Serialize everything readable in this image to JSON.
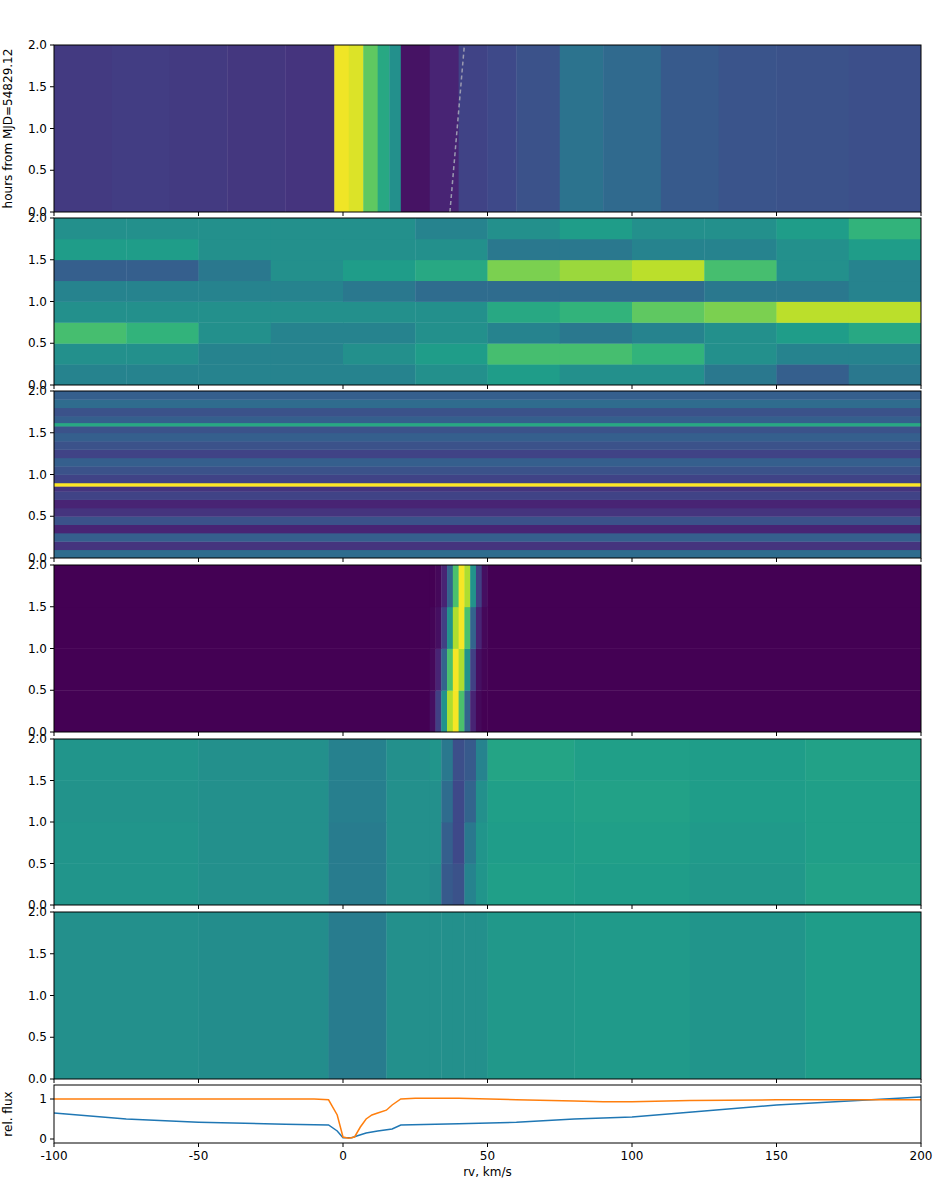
{
  "chart_data": [
    {
      "type": "heatmap",
      "ylabel": "hours from MJD=54829.12",
      "xlim": [
        -100,
        200
      ],
      "xticks": [
        -100,
        -50,
        0,
        50,
        100,
        150,
        200
      ],
      "ylim": [
        0,
        2
      ],
      "yticks": [
        {
          "value": 0,
          "label": "0.0"
        },
        {
          "value": 0.5,
          "label": "0.5"
        },
        {
          "value": 1,
          "label": "1.0"
        },
        {
          "value": 1.5,
          "label": "1.5"
        },
        {
          "value": 2,
          "label": "2.0"
        }
      ],
      "tick_labels": "y",
      "zlim": [
        0,
        1
      ],
      "x": [
        -100,
        -80,
        -60,
        -40,
        -20,
        -3,
        2,
        7,
        12,
        16,
        20,
        30,
        40,
        50,
        60,
        75,
        90,
        110,
        130,
        150,
        175,
        200
      ],
      "y": [
        0,
        2
      ],
      "z": [
        [
          0.17,
          0.18,
          0.17,
          0.16,
          0.15,
          0.98,
          0.95,
          0.75,
          0.6,
          0.5,
          0.05,
          0.1,
          0.2,
          0.22,
          0.25,
          0.38,
          0.34,
          0.28,
          0.26,
          0.25,
          0.24
        ]
      ],
      "lines": [
        {
          "x": [
            37,
            42
          ],
          "y": [
            0,
            2
          ],
          "line_style": "dashed",
          "color": "#9a9ab0"
        }
      ]
    },
    {
      "type": "heatmap",
      "xlim": [
        -100,
        200
      ],
      "xticks": [
        -100,
        -50,
        0,
        50,
        100,
        150,
        200
      ],
      "ylim": [
        0,
        2
      ],
      "yticks": [
        {
          "value": 0,
          "label": "0.0"
        },
        {
          "value": 0.5,
          "label": "0.5"
        },
        {
          "value": 1,
          "label": "1.0"
        },
        {
          "value": 1.5,
          "label": "1.5"
        },
        {
          "value": 2,
          "label": "2.0"
        }
      ],
      "tick_labels": "y",
      "zlim": [
        0,
        1
      ],
      "x": [
        -100,
        -75,
        -50,
        -25,
        0,
        25,
        50,
        75,
        100,
        125,
        150,
        175,
        200
      ],
      "y": [
        0,
        0.25,
        0.5,
        0.75,
        1,
        1.25,
        1.5,
        1.75,
        2
      ],
      "z": [
        [
          0.45,
          0.45,
          0.45,
          0.45,
          0.45,
          0.5,
          0.55,
          0.5,
          0.5,
          0.4,
          0.3,
          0.4
        ],
        [
          0.5,
          0.5,
          0.45,
          0.45,
          0.5,
          0.55,
          0.7,
          0.7,
          0.65,
          0.5,
          0.45,
          0.45
        ],
        [
          0.7,
          0.65,
          0.5,
          0.45,
          0.45,
          0.5,
          0.45,
          0.4,
          0.45,
          0.5,
          0.55,
          0.6
        ],
        [
          0.5,
          0.5,
          0.5,
          0.5,
          0.5,
          0.5,
          0.6,
          0.65,
          0.75,
          0.8,
          0.9,
          0.9
        ],
        [
          0.45,
          0.45,
          0.45,
          0.45,
          0.4,
          0.35,
          0.35,
          0.35,
          0.35,
          0.4,
          0.4,
          0.45
        ],
        [
          0.3,
          0.3,
          0.4,
          0.5,
          0.55,
          0.6,
          0.8,
          0.85,
          0.9,
          0.7,
          0.5,
          0.45
        ],
        [
          0.55,
          0.55,
          0.5,
          0.5,
          0.5,
          0.5,
          0.4,
          0.4,
          0.45,
          0.45,
          0.5,
          0.55
        ],
        [
          0.5,
          0.5,
          0.5,
          0.5,
          0.5,
          0.45,
          0.5,
          0.55,
          0.5,
          0.5,
          0.55,
          0.65
        ]
      ]
    },
    {
      "type": "heatmap",
      "xlim": [
        -100,
        200
      ],
      "xticks": [
        -100,
        -50,
        0,
        50,
        100,
        150,
        200
      ],
      "ylim": [
        0,
        2
      ],
      "yticks": [
        {
          "value": 0,
          "label": "0.0"
        },
        {
          "value": 0.5,
          "label": "0.5"
        },
        {
          "value": 1,
          "label": "1.0"
        },
        {
          "value": 1.5,
          "label": "1.5"
        },
        {
          "value": 2,
          "label": "2.0"
        }
      ],
      "tick_labels": "y",
      "zlim": [
        0,
        1
      ],
      "x": [
        -100,
        200
      ],
      "y": [
        0,
        0.1,
        0.2,
        0.3,
        0.4,
        0.5,
        0.6,
        0.7,
        0.8,
        0.86,
        0.9,
        1,
        1.1,
        1.2,
        1.3,
        1.4,
        1.5,
        1.58,
        1.62,
        1.7,
        1.8,
        1.9,
        2
      ],
      "z": [
        [
          0.35
        ],
        [
          0.15
        ],
        [
          0.3
        ],
        [
          0.1
        ],
        [
          0.25
        ],
        [
          0.15
        ],
        [
          0.1
        ],
        [
          0.2
        ],
        [
          0.15
        ],
        [
          1
        ],
        [
          0.2
        ],
        [
          0.25
        ],
        [
          0.3
        ],
        [
          0.2
        ],
        [
          0.25
        ],
        [
          0.3
        ],
        [
          0.25
        ],
        [
          0.6
        ],
        [
          0.3
        ],
        [
          0.25
        ],
        [
          0.35
        ],
        [
          0.3
        ]
      ]
    },
    {
      "type": "heatmap",
      "xlim": [
        -100,
        200
      ],
      "xticks": [
        -100,
        -50,
        0,
        50,
        100,
        150,
        200
      ],
      "ylim": [
        0,
        2
      ],
      "yticks": [
        {
          "value": 0,
          "label": "0.0"
        },
        {
          "value": 0.5,
          "label": "0.5"
        },
        {
          "value": 1,
          "label": "1.0"
        },
        {
          "value": 1.5,
          "label": "1.5"
        },
        {
          "value": 2,
          "label": "2.0"
        }
      ],
      "tick_labels": "y",
      "zlim": [
        0,
        1
      ],
      "x": [
        -100,
        30,
        32,
        34,
        36,
        38,
        40,
        42,
        44,
        46,
        48,
        50,
        200
      ],
      "y": [
        0,
        0.5,
        1,
        1.5,
        2
      ],
      "z": [
        [
          0,
          0.04,
          0.19,
          0.51,
          0.88,
          0.99,
          0.71,
          0.32,
          0.1,
          0.02,
          0,
          0
        ],
        [
          0,
          0.02,
          0.1,
          0.32,
          0.71,
          0.99,
          0.88,
          0.51,
          0.19,
          0.04,
          0.01,
          0
        ],
        [
          0,
          0.01,
          0.04,
          0.19,
          0.51,
          0.88,
          0.99,
          0.71,
          0.32,
          0.1,
          0.02,
          0
        ],
        [
          0,
          0,
          0.02,
          0.1,
          0.32,
          0.71,
          0.99,
          0.88,
          0.51,
          0.19,
          0.04,
          0
        ]
      ]
    },
    {
      "type": "heatmap",
      "xlim": [
        -100,
        200
      ],
      "xticks": [
        -100,
        -50,
        0,
        50,
        100,
        150,
        200
      ],
      "ylim": [
        0,
        2
      ],
      "yticks": [
        {
          "value": 0,
          "label": "0.0"
        },
        {
          "value": 0.5,
          "label": "0.5"
        },
        {
          "value": 1,
          "label": "1.0"
        },
        {
          "value": 1.5,
          "label": "1.5"
        },
        {
          "value": 2,
          "label": "2.0"
        }
      ],
      "tick_labels": "y",
      "zlim": [
        0,
        1
      ],
      "x": [
        -100,
        -50,
        -5,
        15,
        30,
        34,
        38,
        42,
        46,
        50,
        80,
        120,
        160,
        200
      ],
      "y": [
        0,
        0.5,
        1,
        1.5,
        2
      ],
      "z": [
        [
          0.52,
          0.5,
          0.42,
          0.5,
          0.48,
          0.28,
          0.25,
          0.45,
          0.52,
          0.56,
          0.55,
          0.53,
          0.57
        ],
        [
          0.52,
          0.5,
          0.42,
          0.5,
          0.5,
          0.3,
          0.22,
          0.4,
          0.52,
          0.55,
          0.56,
          0.54,
          0.56
        ],
        [
          0.51,
          0.5,
          0.43,
          0.5,
          0.5,
          0.35,
          0.22,
          0.32,
          0.5,
          0.56,
          0.57,
          0.55,
          0.56
        ],
        [
          0.52,
          0.5,
          0.44,
          0.5,
          0.52,
          0.4,
          0.24,
          0.28,
          0.45,
          0.58,
          0.56,
          0.55,
          0.57
        ]
      ]
    },
    {
      "type": "heatmap",
      "xlim": [
        -100,
        200
      ],
      "xticks": [
        -100,
        -50,
        0,
        50,
        100,
        150,
        200
      ],
      "ylim": [
        0,
        2
      ],
      "yticks": [
        {
          "value": 0,
          "label": "0.0"
        },
        {
          "value": 0.5,
          "label": "0.5"
        },
        {
          "value": 1,
          "label": "1.0"
        },
        {
          "value": 1.5,
          "label": "1.5"
        },
        {
          "value": 2,
          "label": "2.0"
        }
      ],
      "tick_labels": "y",
      "zlim": [
        0,
        1
      ],
      "x": [
        -100,
        -50,
        -5,
        15,
        30,
        34,
        38,
        42,
        46,
        50,
        80,
        120,
        160,
        200
      ],
      "y": [
        0,
        2
      ],
      "z": [
        [
          0.5,
          0.49,
          0.42,
          0.5,
          0.5,
          0.5,
          0.5,
          0.5,
          0.5,
          0.53,
          0.54,
          0.52,
          0.55
        ]
      ]
    },
    {
      "type": "line",
      "xlabel": "rv, km/s",
      "ylabel": "rel. flux",
      "xlim": [
        -100,
        200
      ],
      "xticks": [
        -100,
        -50,
        0,
        50,
        100,
        150,
        200
      ],
      "ylim": [
        -0.1,
        1.35
      ],
      "yticks": [
        0,
        1
      ],
      "series": [
        {
          "color": "#1f77b4",
          "x": [
            -100,
            -75,
            -50,
            -20,
            -5,
            -2,
            0,
            3,
            5,
            8,
            12,
            17,
            20,
            40,
            60,
            80,
            100,
            125,
            150,
            175,
            200
          ],
          "values": [
            0.65,
            0.5,
            0.42,
            0.37,
            0.35,
            0.2,
            0.03,
            0.03,
            0.08,
            0.15,
            0.2,
            0.25,
            0.35,
            0.38,
            0.42,
            0.5,
            0.55,
            0.7,
            0.85,
            0.95,
            1.05
          ]
        },
        {
          "color": "#ff7f0e",
          "x": [
            -100,
            -10,
            -5,
            -2,
            0,
            2,
            4,
            6,
            8,
            10,
            12,
            15,
            17,
            20,
            25,
            40,
            60,
            80,
            90,
            100,
            120,
            150,
            170,
            200
          ],
          "values": [
            1,
            1,
            0.98,
            0.6,
            0.05,
            0.02,
            0.05,
            0.3,
            0.5,
            0.6,
            0.65,
            0.72,
            0.85,
            1,
            1.02,
            1.02,
            0.98,
            0.95,
            0.93,
            0.93,
            0.96,
            0.98,
            0.98,
            0.98
          ]
        }
      ]
    }
  ]
}
